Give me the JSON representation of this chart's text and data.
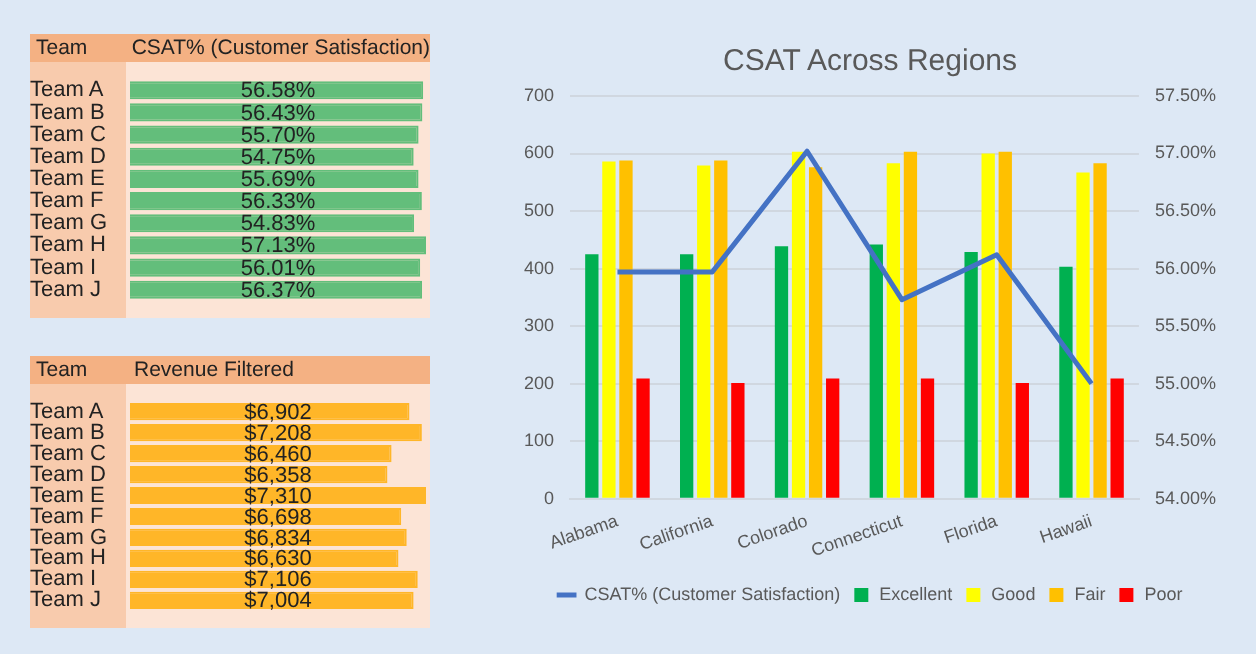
{
  "chart_data": [
    {
      "type": "bar",
      "orientation": "horizontal",
      "title": "CSAT% (Customer Satisfaction)",
      "ylabel": "Team",
      "categories": [
        "Team A",
        "Team B",
        "Team C",
        "Team D",
        "Team E",
        "Team F",
        "Team G",
        "Team H",
        "Team I",
        "Team J"
      ],
      "values": [
        56.58,
        56.43,
        55.7,
        54.75,
        55.69,
        56.33,
        54.83,
        57.13,
        56.01,
        56.37
      ],
      "value_labels": [
        "56.58%",
        "56.43%",
        "55.70%",
        "54.75%",
        "55.69%",
        "56.33%",
        "54.83%",
        "57.13%",
        "56.01%",
        "56.37%"
      ],
      "color": "#63be7b",
      "xlim": [
        0,
        57.13
      ],
      "tick_labels": "y",
      "grid": false,
      "legend": false
    },
    {
      "type": "bar",
      "orientation": "horizontal",
      "title": "Revenue Filtered",
      "ylabel": "Team",
      "categories": [
        "Team A",
        "Team B",
        "Team C",
        "Team D",
        "Team E",
        "Team F",
        "Team G",
        "Team H",
        "Team I",
        "Team J"
      ],
      "values": [
        6902,
        7208,
        6460,
        6358,
        7310,
        6698,
        6834,
        6630,
        7106,
        7004
      ],
      "value_labels": [
        "$6,902",
        "$7,208",
        "$6,460",
        "$6,358",
        "$7,310",
        "$6,698",
        "$6,834",
        "$6,630",
        "$7,106",
        "$7,004"
      ],
      "color": "#ffb628",
      "xlim": [
        0,
        7310
      ],
      "tick_labels": "y",
      "grid": false,
      "legend": false
    },
    {
      "type": "bar",
      "title": "CSAT Across Regions",
      "categories": [
        "Alabama",
        "California",
        "Colorado",
        "Connecticut",
        "Florida",
        "Hawaii"
      ],
      "series": [
        {
          "name": "Excellent",
          "color": "#00b050",
          "values": [
            425,
            425,
            439,
            442,
            429,
            403
          ]
        },
        {
          "name": "Good",
          "color": "#ffff00",
          "values": [
            586,
            579,
            603,
            583,
            600,
            567
          ]
        },
        {
          "name": "Fair",
          "color": "#ffc000",
          "values": [
            588,
            588,
            576,
            603,
            603,
            583
          ]
        },
        {
          "name": "Poor",
          "color": "#ff0000",
          "values": [
            209,
            201,
            209,
            209,
            201,
            209
          ]
        },
        {
          "name": "CSAT% (Customer Satisfaction)",
          "type": "line",
          "axis": "y2",
          "color": "#4472c4",
          "values": [
            55.97,
            55.97,
            57.02,
            55.73,
            56.12,
            55.0
          ]
        }
      ],
      "ylim": [
        0,
        700
      ],
      "yticks": [
        0,
        100,
        200,
        300,
        400,
        500,
        600,
        700
      ],
      "y2lim": [
        54,
        57.5
      ],
      "y2ticks": [
        {
          "value": 54,
          "label": "54.00%"
        },
        {
          "value": 54.5,
          "label": "54.50%"
        },
        {
          "value": 55,
          "label": "55.00%"
        },
        {
          "value": 55.5,
          "label": "55.50%"
        },
        {
          "value": 56,
          "label": "56.00%"
        },
        {
          "value": 56.5,
          "label": "56.50%"
        },
        {
          "value": 57,
          "label": "57.00%"
        },
        {
          "value": 57.5,
          "label": "57.50%"
        }
      ],
      "grid": "y",
      "legend": "bottom",
      "marker": "none",
      "line_style": "solid"
    }
  ]
}
